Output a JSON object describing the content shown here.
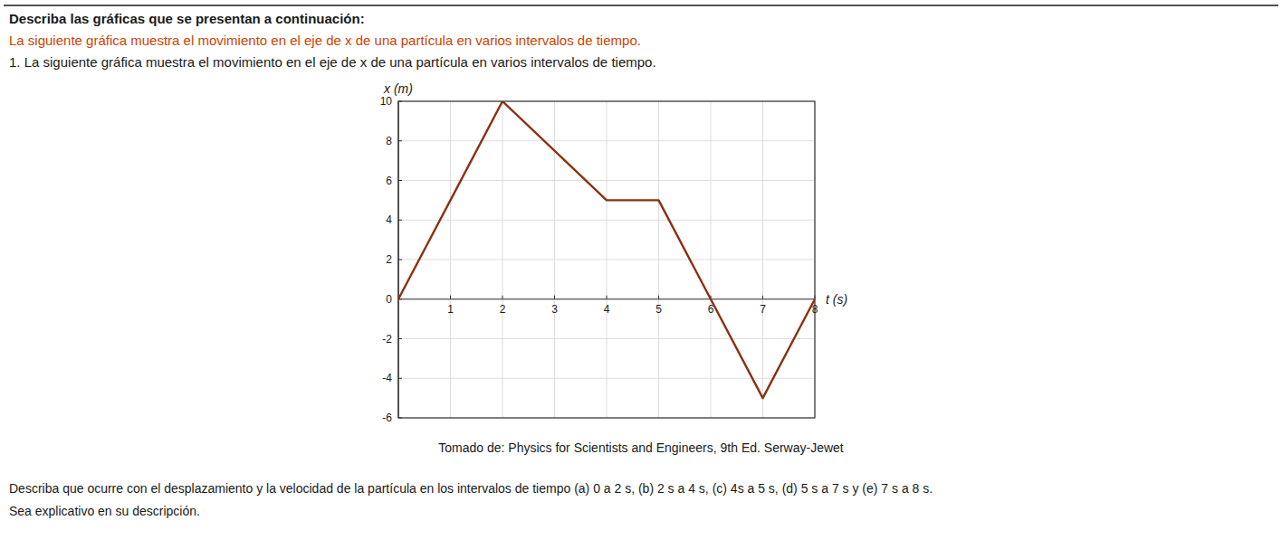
{
  "chart_data": {
    "type": "line",
    "title": "Describa las gráficas que se presentan a continuación:",
    "subtitle": "La siguiente gráfica muestra el movimiento en el eje de x de una partícula en varios intervalos de tiempo.",
    "annotations": [
      "1. La siguiente gráfica muestra el movimiento en el eje de x de una partícula en varios intervalos de tiempo.",
      "Tomado de: Physics for Scientists and Engineers, 9th Ed. Serway-Jewet",
      "Describa que ocurre con el desplazamiento y la velocidad de la partícula en los intervalos de tiempo (a) 0 a 2 s, (b) 2 s a 4 s, (c) 4s a 5 s, (d) 5 s a 7 s y (e) 7 s a 8 s.",
      "Sea explicativo en su descripción."
    ],
    "x_label": "t (s)",
    "y_label": "x (m)",
    "x": [
      0,
      2,
      4,
      5,
      7,
      8
    ],
    "values": [
      0,
      10,
      5,
      5,
      -5,
      0
    ],
    "color": "#8B3010",
    "xlim": [
      0,
      8
    ],
    "ylim": [
      -6,
      10
    ],
    "xticks": [
      1,
      2,
      3,
      4,
      5,
      6,
      7,
      8
    ],
    "yticks": [
      -6,
      -4,
      -2,
      0,
      2,
      4,
      6,
      8,
      10
    ],
    "grid": true
  }
}
